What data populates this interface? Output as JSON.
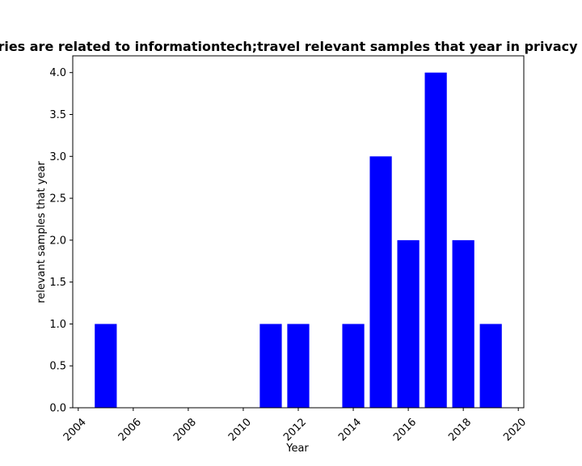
{
  "chart_data": {
    "type": "bar",
    "title": "ries are related to informationtech;travel relevant samples that year in privacy",
    "xlabel": "Year",
    "ylabel": "relevant samples that year",
    "x": [
      2005,
      2011,
      2012,
      2014,
      2015,
      2016,
      2017,
      2018,
      2019
    ],
    "values": [
      1,
      1,
      1,
      1,
      3,
      2,
      4,
      2,
      1
    ],
    "bar_color": "#0000ff",
    "xlim": [
      2003.8,
      2020.2
    ],
    "ylim": [
      0,
      4.2
    ],
    "xticks": [
      2004,
      2006,
      2008,
      2010,
      2012,
      2014,
      2016,
      2018,
      2020
    ],
    "yticks": [
      "0.0",
      "0.5",
      "1.0",
      "1.5",
      "2.0",
      "2.5",
      "3.0",
      "3.5",
      "4.0"
    ],
    "grid": false,
    "legend": "none"
  }
}
